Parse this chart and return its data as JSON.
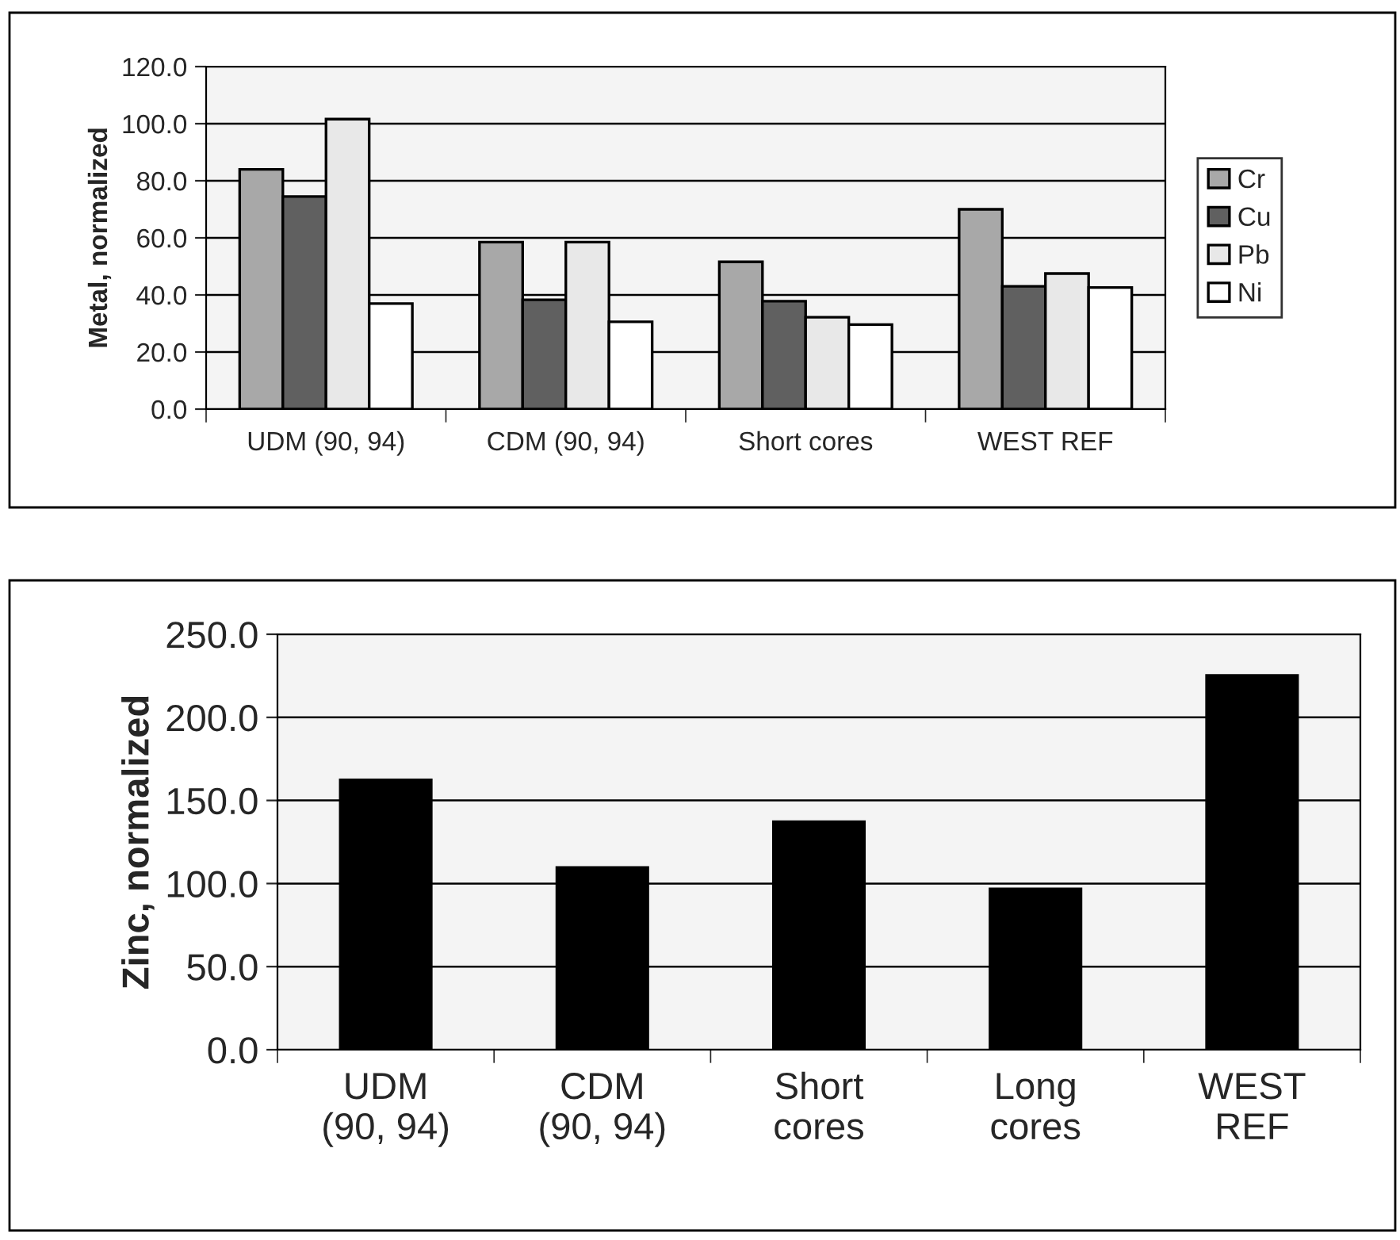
{
  "chart_data": [
    {
      "type": "bar",
      "ylabel": "Metal, normalized",
      "categories": [
        "UDM (90, 94)",
        "CDM (90, 94)",
        "Short cores",
        "WEST REF"
      ],
      "series": [
        {
          "name": "Cr",
          "color": "#a8a8a8",
          "values": [
            84.0,
            58.5,
            51.6,
            70.0
          ]
        },
        {
          "name": "Cu",
          "color": "#606060",
          "values": [
            74.5,
            38.3,
            37.8,
            43.0
          ]
        },
        {
          "name": "Pb",
          "color": "#e8e8e8",
          "values": [
            101.6,
            58.5,
            32.2,
            47.5
          ]
        },
        {
          "name": "Ni",
          "color": "#ffffff",
          "values": [
            37.0,
            30.6,
            29.6,
            42.6
          ]
        }
      ],
      "ylim": [
        0,
        120
      ],
      "yticks": [
        {
          "value": 0,
          "label": "0.0"
        },
        {
          "value": 20,
          "label": "20.0"
        },
        {
          "value": 40,
          "label": "40.0"
        },
        {
          "value": 60,
          "label": "60.0"
        },
        {
          "value": 80,
          "label": "80.0"
        },
        {
          "value": 100,
          "label": "100.0"
        },
        {
          "value": 120,
          "label": "120.0"
        }
      ],
      "grid": "y",
      "legend": "right"
    },
    {
      "type": "bar",
      "ylabel": "Zinc, normalized",
      "categories": [
        "UDM\n(90, 94)",
        "CDM\n(90, 94)",
        "Short\ncores",
        "Long\ncores",
        "WEST\nREF"
      ],
      "values": [
        162.4,
        109.6,
        137.2,
        96.8,
        225.2
      ],
      "color": "#000000",
      "ylim": [
        0,
        250
      ],
      "yticks": [
        {
          "value": 0,
          "label": "0.0"
        },
        {
          "value": 50,
          "label": "50.0"
        },
        {
          "value": 100,
          "label": "100.0"
        },
        {
          "value": 150,
          "label": "150.0"
        },
        {
          "value": 200,
          "label": "200.0"
        },
        {
          "value": 250,
          "label": "250.0"
        }
      ],
      "grid": "y"
    }
  ]
}
